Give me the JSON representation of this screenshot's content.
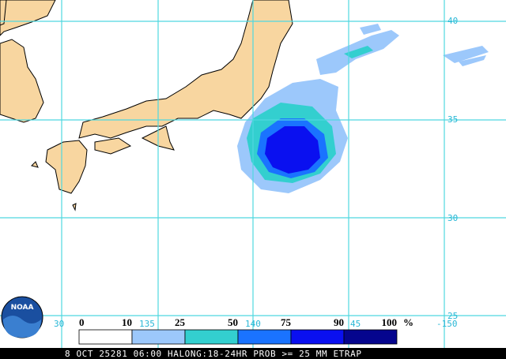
{
  "map": {
    "lat_labels": [
      "40",
      "35",
      "30",
      "25"
    ],
    "lon_labels": [
      "30",
      "135",
      "140",
      "45",
      "-150"
    ]
  },
  "legend": {
    "labels": [
      "0",
      "10",
      "25",
      "50",
      "75",
      "90",
      "100"
    ],
    "unit": "%",
    "colors": [
      "#ffffff",
      "#9cc8fb",
      "#33cfcf",
      "#1a73ff",
      "#0a10f0",
      "#05058e"
    ]
  },
  "logo": "NOAA",
  "footer": "8 OCT 25281 06:00 HALONG:18-24HR PROB >= 25 MM ETRAP"
}
